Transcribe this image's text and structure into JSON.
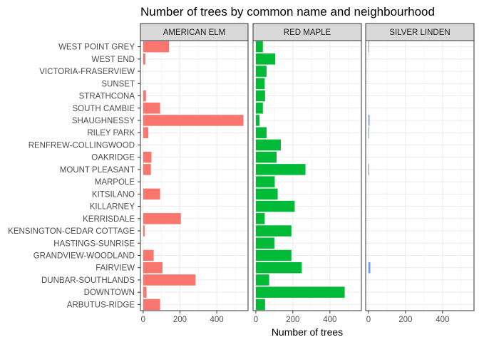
{
  "chart_data": {
    "type": "bar",
    "orientation": "horizontal",
    "title": "Number of trees by common name and neighbourhood",
    "xlabel": "Number of trees",
    "ylabel": "",
    "xlim": [
      -15,
      570
    ],
    "x_ticks": [
      0,
      200,
      400
    ],
    "grid": true,
    "categories": [
      "WEST POINT GREY",
      "WEST END",
      "VICTORIA-FRASERVIEW",
      "SUNSET",
      "STRATHCONA",
      "SOUTH CAMBIE",
      "SHAUGHNESSY",
      "RILEY PARK",
      "RENFREW-COLLINGWOOD",
      "OAKRIDGE",
      "MOUNT PLEASANT",
      "MARPOLE",
      "KITSILANO",
      "KILLARNEY",
      "KERRISDALE",
      "KENSINGTON-CEDAR COTTAGE",
      "HASTINGS-SUNRISE",
      "GRANDVIEW-WOODLAND",
      "FAIRVIEW",
      "DUNBAR-SOUTHLANDS",
      "DOWNTOWN",
      "ARBUTUS-RIDGE"
    ],
    "series": [
      {
        "name": "AMERICAN ELM",
        "color": "#F8766D",
        "values": [
          140,
          12,
          0,
          0,
          15,
          92,
          545,
          28,
          0,
          45,
          42,
          0,
          92,
          0,
          205,
          8,
          0,
          57,
          105,
          285,
          18,
          92
        ]
      },
      {
        "name": "RED MAPLE",
        "color": "#00BA38",
        "values": [
          38,
          105,
          58,
          48,
          50,
          38,
          20,
          58,
          135,
          112,
          268,
          102,
          118,
          210,
          48,
          192,
          100,
          192,
          248,
          72,
          480,
          50
        ]
      },
      {
        "name": "SILVER LINDEN",
        "color": "#619CFF",
        "values": [
          3,
          0,
          0,
          0,
          0,
          0,
          6,
          3,
          0,
          0,
          4,
          0,
          0,
          0,
          0,
          0,
          0,
          0,
          10,
          0,
          0,
          0
        ]
      }
    ]
  }
}
